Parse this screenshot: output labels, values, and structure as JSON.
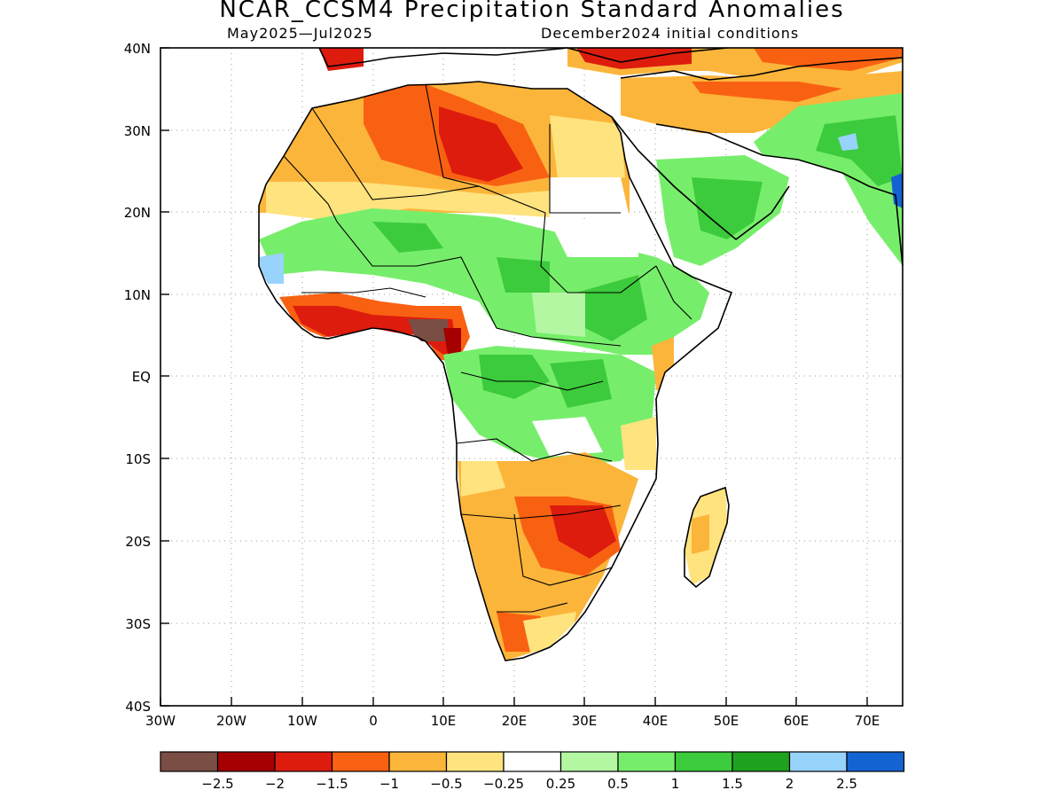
{
  "header": {
    "title": "NCAR_CCSM4 Precipitation Standard Anomalies",
    "period": "May2025—Jul2025",
    "init": "December2024 initial conditions"
  },
  "axes": {
    "x_ticks": [
      "30W",
      "20W",
      "10W",
      "0",
      "10E",
      "20E",
      "30E",
      "40E",
      "50E",
      "60E",
      "70E"
    ],
    "y_ticks": [
      "40N",
      "30N",
      "20N",
      "10N",
      "EQ",
      "10S",
      "20S",
      "30S",
      "40S"
    ]
  },
  "colorbar": {
    "colors": [
      "#7a4e45",
      "#a50000",
      "#dd1c0e",
      "#f96112",
      "#fcb53b",
      "#ffe37e",
      "#ffffff",
      "#b3f7a3",
      "#77ee6b",
      "#3ccb3c",
      "#1fa21f",
      "#97d3fa",
      "#1463d3"
    ],
    "labels": [
      "−2.5",
      "−2",
      "−1.5",
      "−1",
      "−0.5",
      "−0.25",
      "0.25",
      "0.5",
      "1",
      "1.5",
      "2",
      "2.5"
    ]
  },
  "colors": {
    "dry_extreme": "#7a4e45",
    "dry_strong": "#a50000",
    "dry_red": "#dd1c0e",
    "dry_orange": "#f96112",
    "dry_light_orange": "#fcb53b",
    "dry_yellow": "#ffe37e",
    "neutral": "#ffffff",
    "wet_light": "#b3f7a3",
    "wet_green": "#77ee6b",
    "wet_mid": "#3ccb3c",
    "wet_dark": "#1fa21f",
    "wet_light_blue": "#97d3fa",
    "wet_blue": "#1463d3"
  }
}
